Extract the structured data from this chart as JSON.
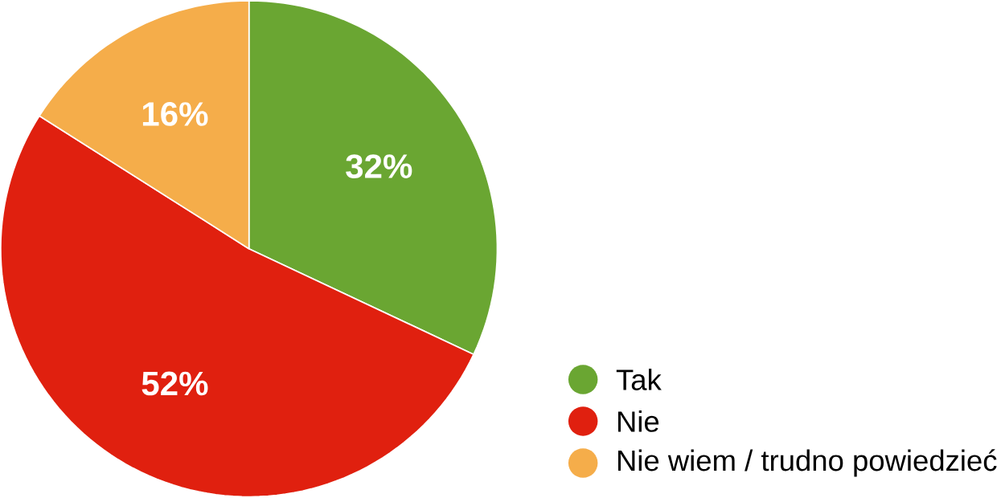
{
  "chart_data": {
    "type": "pie",
    "categories": [
      "Tak",
      "Nie",
      "Nie wiem /  trudno powiedzieć"
    ],
    "values": [
      32,
      52,
      16
    ],
    "colors": [
      "#6aa632",
      "#e0200f",
      "#f5ad4a"
    ],
    "value_labels": [
      "32%",
      "52%",
      "16%"
    ],
    "legend": "bottom right"
  }
}
